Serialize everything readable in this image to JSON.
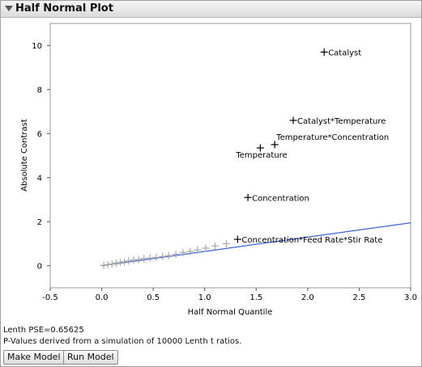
{
  "window": {
    "title": "Half Normal Plot"
  },
  "chart_data": {
    "type": "scatter",
    "xlabel": "Half Normal Quantile",
    "ylabel": "Absolute Contrast",
    "xlim": [
      -0.5,
      3.0
    ],
    "ylim": [
      -1.0,
      11.0
    ],
    "xticks": [
      "-0.5",
      "0.0",
      "0.5",
      "1.0",
      "1.5",
      "2.0",
      "2.5",
      "3.0"
    ],
    "yticks": [
      "0",
      "2",
      "4",
      "6",
      "8",
      "10"
    ],
    "grid": false,
    "reference_line": {
      "color": "#3a62d6",
      "points": [
        [
          0.0,
          0.0
        ],
        [
          3.0,
          1.95
        ]
      ]
    },
    "labeled_points": [
      {
        "label": "Catalyst",
        "x": 2.16,
        "y": 9.7
      },
      {
        "label": "Catalyst*Temperature",
        "x": 1.86,
        "y": 6.6
      },
      {
        "label": "Temperature*Concentration",
        "x": 1.68,
        "y": 5.5
      },
      {
        "label": "Temperature",
        "x": 1.54,
        "y": 5.35
      },
      {
        "label": "Concentration",
        "x": 1.42,
        "y": 3.1
      },
      {
        "label": "Concentration*Feed Rate*Stir Rate",
        "x": 1.32,
        "y": 1.2
      }
    ],
    "unlabeled_points": [
      [
        0.02,
        0.02
      ],
      [
        0.06,
        0.05
      ],
      [
        0.1,
        0.08
      ],
      [
        0.14,
        0.12
      ],
      [
        0.18,
        0.15
      ],
      [
        0.22,
        0.18
      ],
      [
        0.26,
        0.22
      ],
      [
        0.31,
        0.26
      ],
      [
        0.36,
        0.28
      ],
      [
        0.41,
        0.32
      ],
      [
        0.47,
        0.35
      ],
      [
        0.53,
        0.38
      ],
      [
        0.59,
        0.42
      ],
      [
        0.65,
        0.46
      ],
      [
        0.72,
        0.52
      ],
      [
        0.79,
        0.6
      ],
      [
        0.86,
        0.65
      ],
      [
        0.93,
        0.72
      ],
      [
        1.01,
        0.8
      ],
      [
        1.1,
        0.9
      ],
      [
        1.21,
        1.0
      ]
    ],
    "labeled_color": "#000000",
    "unlabeled_color": "#a8a8a8"
  },
  "stats": {
    "lenth_pse": "Lenth PSE=0.65625",
    "note": "P-Values derived from a simulation of 10000 Lenth t ratios."
  },
  "buttons": {
    "make_model": "Make Model",
    "run_model": "Run Model"
  }
}
